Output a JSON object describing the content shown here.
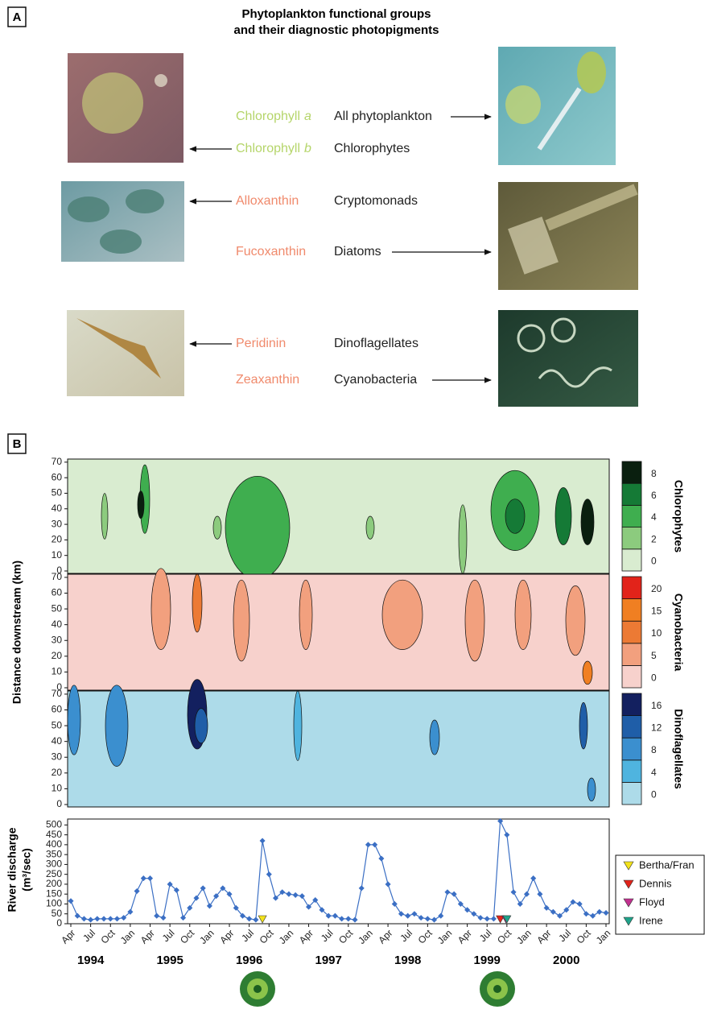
{
  "panel_a": {
    "label": "A",
    "title": [
      "Phytoplankton functional groups",
      "and their diagnostic photopigments"
    ],
    "rows": [
      {
        "pigment": "Chlorophyll",
        "pigment_italic": "a",
        "group": "All phytoplankton",
        "color": "#b5d56a"
      },
      {
        "pigment": "Chlorophyll",
        "pigment_italic": "b",
        "group": "Chlorophytes",
        "color": "#b5d56a"
      },
      {
        "pigment": "Alloxanthin",
        "group": "Cryptomonads",
        "color": "#f08a6c"
      },
      {
        "pigment": "Fucoxanthin",
        "group": "Diatoms",
        "color": "#f08a6c"
      },
      {
        "pigment": "Peridinin",
        "group": "Dinoflagellates",
        "color": "#f08a6c"
      },
      {
        "pigment": "Zeaxanthin",
        "group": "Cyanobacteria",
        "color": "#f08a6c"
      }
    ]
  },
  "panel_b_label": "B",
  "y_axis_label": "Distance downstream (km)",
  "chart_data": [
    {
      "type": "contour",
      "title": "Chlorophytes",
      "ylim": [
        0,
        72
      ],
      "yticks": [
        0,
        10,
        20,
        30,
        40,
        50,
        60,
        70
      ],
      "levels": [
        0,
        2,
        4,
        6,
        8
      ],
      "colors": [
        "#d9ecd0",
        "#8ccb7e",
        "#3fae4f",
        "#157a36",
        "#0a1f0f"
      ]
    },
    {
      "type": "contour",
      "title": "Cyanobacteria",
      "ylim": [
        0,
        72
      ],
      "yticks": [
        0,
        10,
        20,
        30,
        40,
        50,
        60,
        70
      ],
      "levels": [
        0,
        5,
        10,
        15,
        20
      ],
      "colors": [
        "#f7d1cc",
        "#f2a07e",
        "#ec7a34",
        "#f07f22",
        "#e2231a"
      ]
    },
    {
      "type": "contour",
      "title": "Dinoflagellates",
      "ylim": [
        0,
        72
      ],
      "yticks": [
        0,
        10,
        20,
        30,
        40,
        50,
        60,
        70
      ],
      "levels": [
        0,
        4,
        8,
        12,
        16
      ],
      "colors": [
        "#addbe9",
        "#4fb4df",
        "#3b8fcf",
        "#1f5ea8",
        "#13205f"
      ]
    },
    {
      "type": "line",
      "ylabel": [
        "River discharge",
        "(m³/sec)"
      ],
      "color": "#3b6fc4",
      "xlim": [
        "1994-04",
        "2001-01"
      ],
      "ylim": [
        0,
        530
      ],
      "yticks": [
        0,
        50,
        100,
        150,
        200,
        250,
        300,
        350,
        400,
        450,
        500
      ],
      "xticks": [
        {
          "value": "1994-04",
          "label": "Apr"
        },
        {
          "value": "1994-07",
          "label": "Jul"
        },
        {
          "value": "1994-10",
          "label": "Oct"
        },
        {
          "value": "1995-01",
          "label": "Jan"
        },
        {
          "value": "1995-04",
          "label": "Apr"
        },
        {
          "value": "1995-07",
          "label": "Jul"
        },
        {
          "value": "1995-10",
          "label": "Oct"
        },
        {
          "value": "1996-01",
          "label": "Jan"
        },
        {
          "value": "1996-04",
          "label": "Apr"
        },
        {
          "value": "1996-07",
          "label": "Jul"
        },
        {
          "value": "1996-10",
          "label": "Oct"
        },
        {
          "value": "1997-01",
          "label": "Jan"
        },
        {
          "value": "1997-04",
          "label": "Apr"
        },
        {
          "value": "1997-07",
          "label": "Jul"
        },
        {
          "value": "1997-10",
          "label": "Oct"
        },
        {
          "value": "1998-01",
          "label": "Jan"
        },
        {
          "value": "1998-04",
          "label": "Apr"
        },
        {
          "value": "1998-07",
          "label": "Jul"
        },
        {
          "value": "1998-10",
          "label": "Oct"
        },
        {
          "value": "1999-01",
          "label": "Jan"
        },
        {
          "value": "1999-04",
          "label": "Apr"
        },
        {
          "value": "1999-07",
          "label": "Jul"
        },
        {
          "value": "1999-10",
          "label": "Oct"
        },
        {
          "value": "2000-01",
          "label": "Jan"
        },
        {
          "value": "2000-04",
          "label": "Apr"
        },
        {
          "value": "2000-07",
          "label": "Jul"
        },
        {
          "value": "2000-10",
          "label": "Oct"
        },
        {
          "value": "2001-01",
          "label": "Jan"
        }
      ],
      "year_labels": [
        "1994",
        "1995",
        "1996",
        "1997",
        "1998",
        "1999",
        "2000"
      ],
      "x": [
        "1994-04",
        "1994-05",
        "1994-06",
        "1994-07",
        "1994-08",
        "1994-09",
        "1994-10",
        "1994-11",
        "1994-12",
        "1995-01",
        "1995-02",
        "1995-03",
        "1995-04",
        "1995-05",
        "1995-06",
        "1995-07",
        "1995-08",
        "1995-09",
        "1995-10",
        "1995-11",
        "1995-12",
        "1996-01",
        "1996-02",
        "1996-03",
        "1996-04",
        "1996-05",
        "1996-06",
        "1996-07",
        "1996-08",
        "1996-09",
        "1996-10",
        "1996-11",
        "1996-12",
        "1997-01",
        "1997-02",
        "1997-03",
        "1997-04",
        "1997-05",
        "1997-06",
        "1997-07",
        "1997-08",
        "1997-09",
        "1997-10",
        "1997-11",
        "1997-12",
        "1998-01",
        "1998-02",
        "1998-03",
        "1998-04",
        "1998-05",
        "1998-06",
        "1998-07",
        "1998-08",
        "1998-09",
        "1998-10",
        "1998-11",
        "1998-12",
        "1999-01",
        "1999-02",
        "1999-03",
        "1999-04",
        "1999-05",
        "1999-06",
        "1999-07",
        "1999-08",
        "1999-09",
        "1999-10",
        "1999-11",
        "1999-12",
        "2000-01",
        "2000-02",
        "2000-03",
        "2000-04",
        "2000-05",
        "2000-06",
        "2000-07",
        "2000-08",
        "2000-09",
        "2000-10",
        "2000-11",
        "2000-12",
        "2001-01"
      ],
      "values": [
        115,
        40,
        25,
        20,
        25,
        25,
        25,
        25,
        30,
        60,
        165,
        230,
        230,
        40,
        30,
        200,
        170,
        30,
        80,
        130,
        180,
        90,
        140,
        180,
        150,
        80,
        40,
        25,
        20,
        420,
        250,
        130,
        160,
        150,
        145,
        140,
        85,
        120,
        70,
        40,
        40,
        25,
        25,
        20,
        180,
        400,
        400,
        330,
        200,
        100,
        50,
        40,
        50,
        30,
        25,
        20,
        40,
        160,
        150,
        100,
        70,
        50,
        30,
        25,
        25,
        520,
        450,
        160,
        100,
        150,
        230,
        150,
        80,
        60,
        40,
        70,
        110,
        100,
        50,
        40,
        60,
        55
      ],
      "events": [
        {
          "name": "Bertha/Fran",
          "color": "#f2e21b",
          "x": "1996-09"
        },
        {
          "name": "Dennis",
          "color": "#e2231a",
          "x": "1999-09"
        },
        {
          "name": "Floyd",
          "color": "#c2308f",
          "x": "1999-09"
        },
        {
          "name": "Irene",
          "color": "#1fa38a",
          "x": "1999-10"
        }
      ]
    }
  ]
}
